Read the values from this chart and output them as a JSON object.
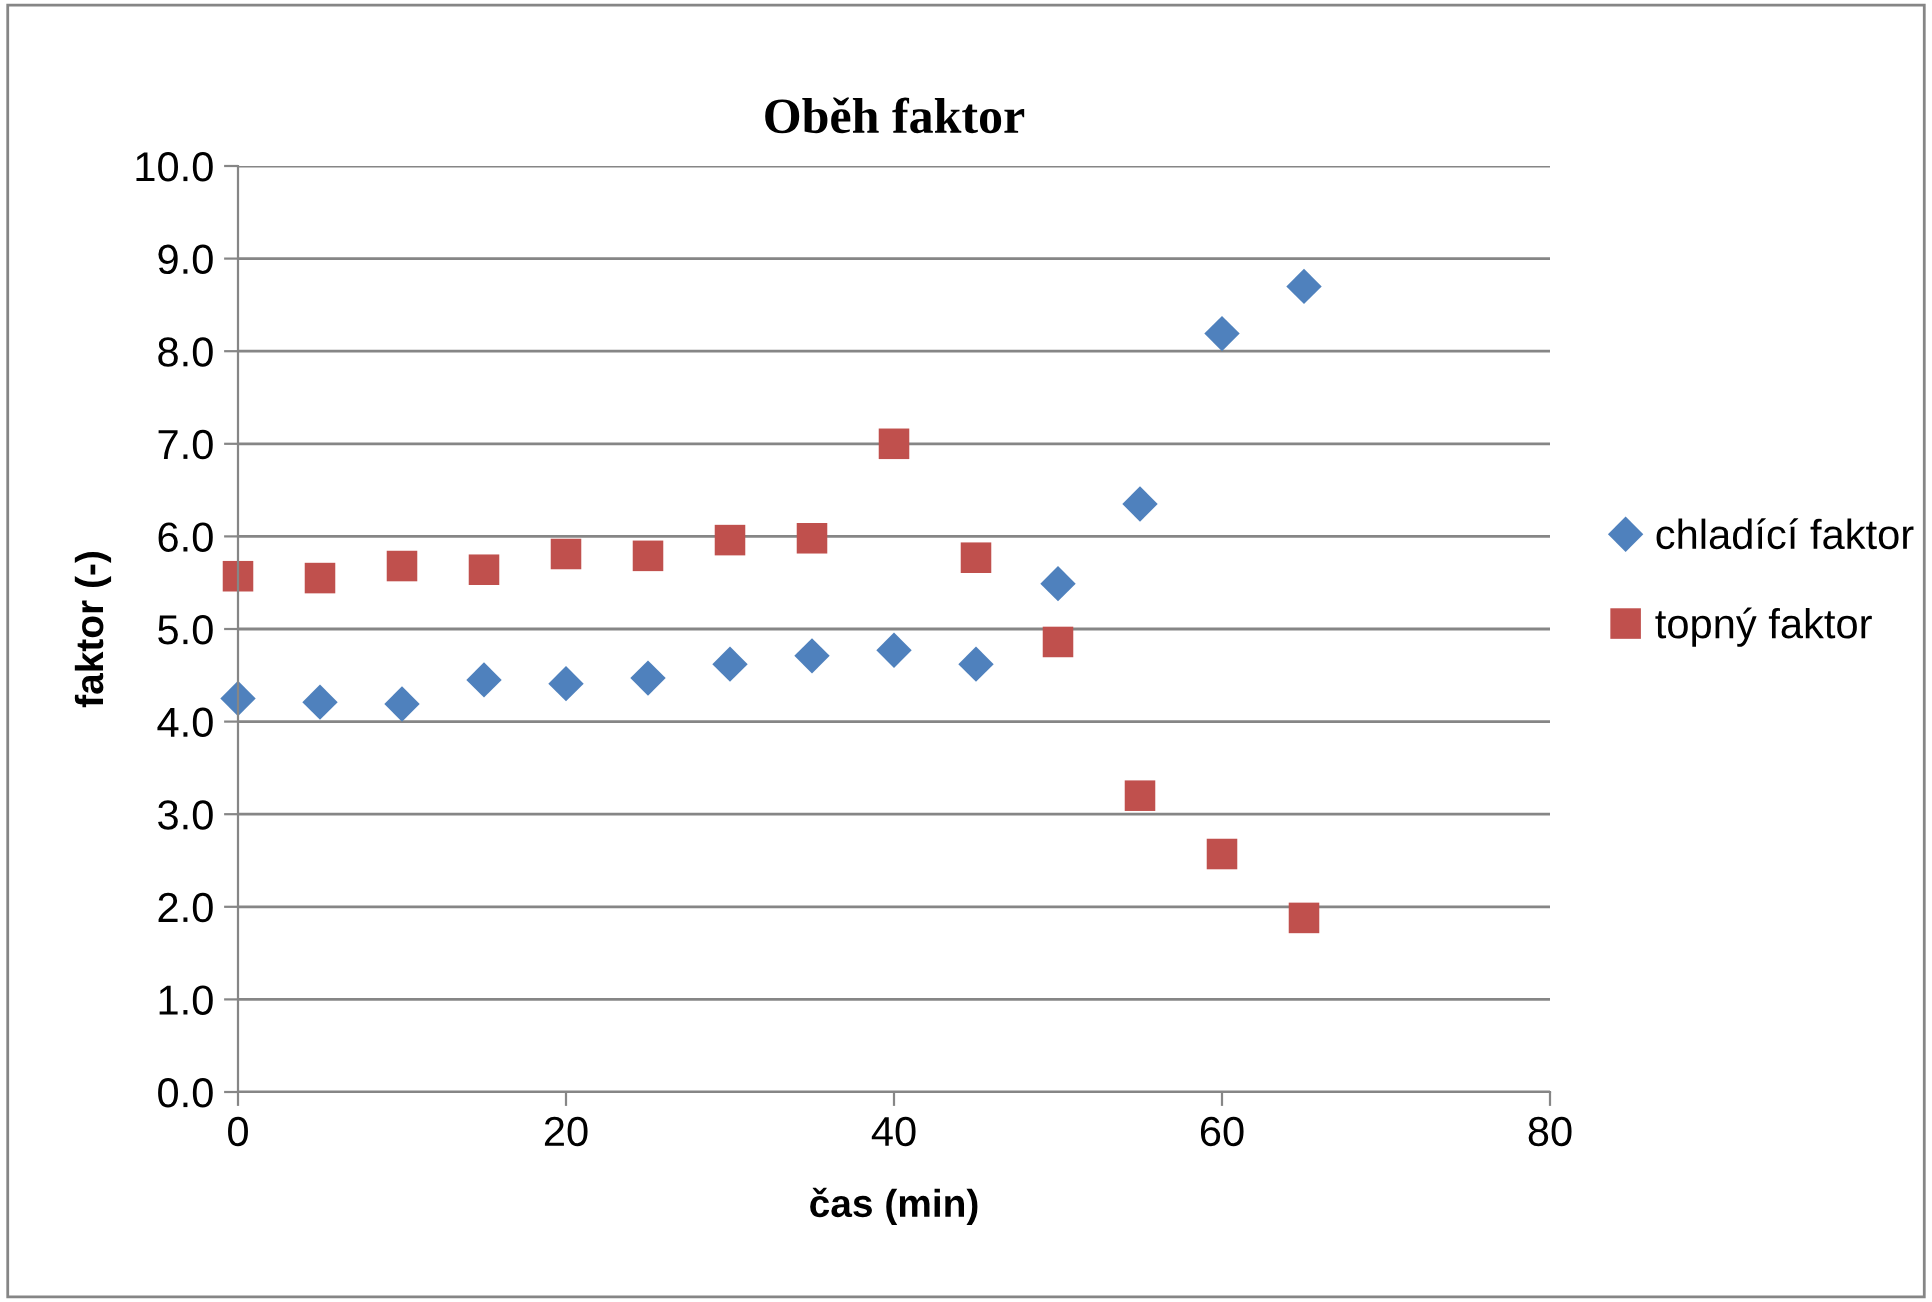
{
  "chart_data": {
    "type": "scatter",
    "title": "Oběh faktor",
    "xlabel": "čas (min)",
    "ylabel": "faktor (-)",
    "x": [
      0,
      5,
      10,
      15,
      20,
      25,
      30,
      35,
      40,
      45,
      50,
      55,
      60,
      65
    ],
    "series": [
      {
        "name": "chladící faktor",
        "color": "#4f81bd",
        "marker": "diamond",
        "values": [
          4.25,
          4.21,
          4.19,
          4.45,
          4.41,
          4.47,
          4.62,
          4.71,
          4.77,
          4.62,
          5.49,
          6.35,
          8.19,
          8.7
        ]
      },
      {
        "name": "topný faktor",
        "color": "#c0504d",
        "marker": "square",
        "values": [
          5.57,
          5.55,
          5.68,
          5.64,
          5.81,
          5.79,
          5.96,
          5.98,
          7.0,
          5.77,
          4.86,
          3.2,
          2.57,
          1.88
        ]
      }
    ],
    "xlim": [
      0,
      80
    ],
    "xticks": [
      0,
      20,
      40,
      60,
      80
    ],
    "ylim": [
      0,
      10
    ],
    "yticks": [
      {
        "value": 0,
        "label": "0.0"
      },
      {
        "value": 1,
        "label": "1.0"
      },
      {
        "value": 2,
        "label": "2.0"
      },
      {
        "value": 3,
        "label": "3.0"
      },
      {
        "value": 4,
        "label": "4.0"
      },
      {
        "value": 5,
        "label": "5.0"
      },
      {
        "value": 6,
        "label": "6.0"
      },
      {
        "value": 7,
        "label": "7.0"
      },
      {
        "value": 8,
        "label": "8.0"
      },
      {
        "value": 9,
        "label": "9.0"
      },
      {
        "value": 10,
        "label": "10.0"
      }
    ],
    "grid": "y",
    "legend": "right"
  }
}
